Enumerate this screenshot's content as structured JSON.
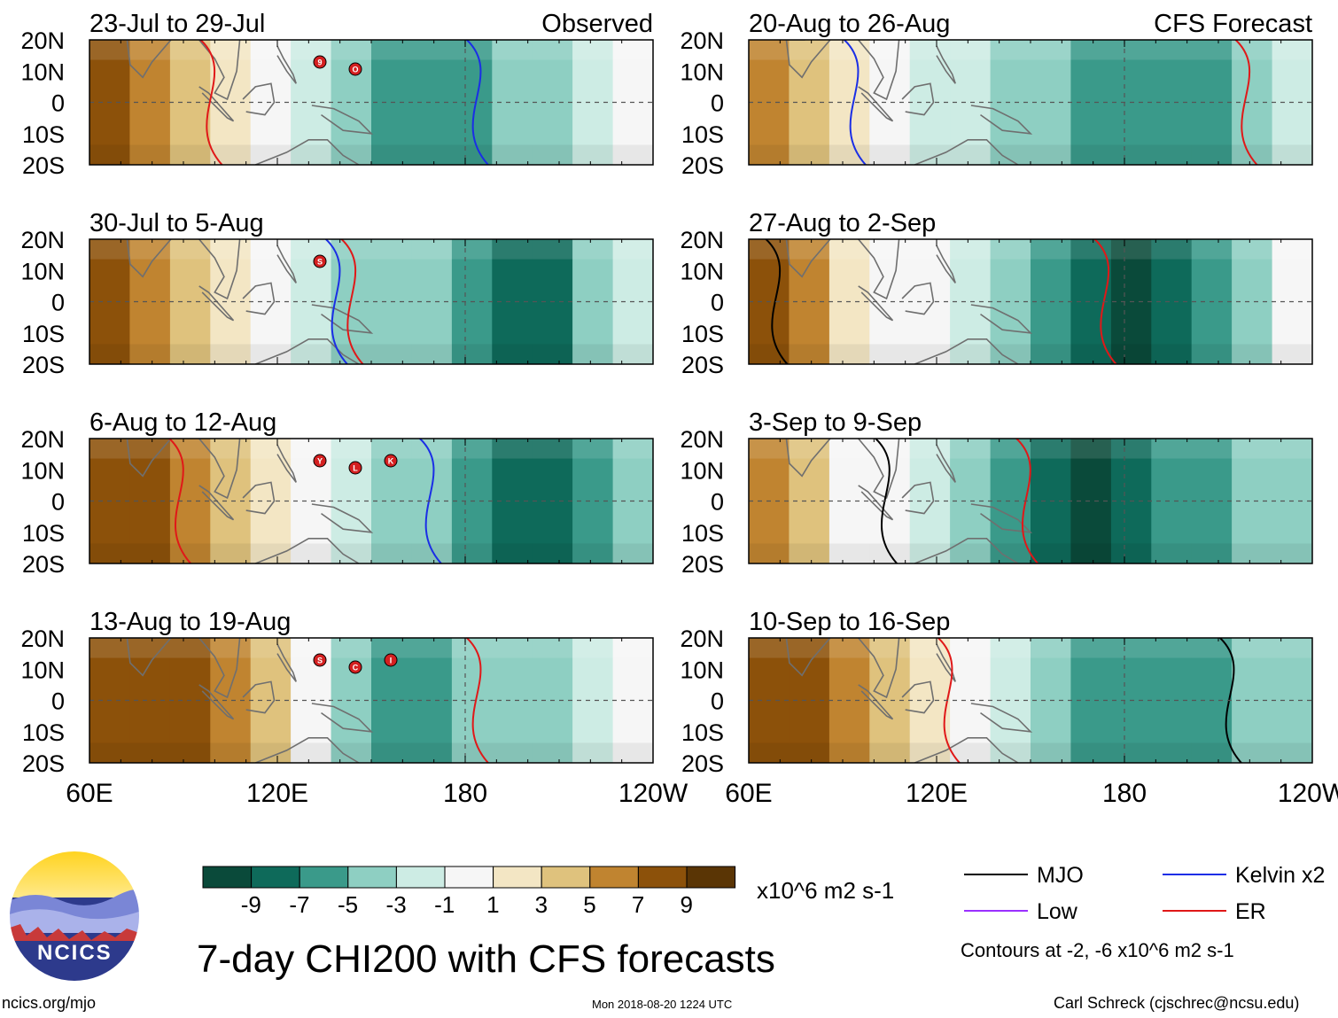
{
  "chart_data": {
    "type": "heatmap",
    "variable": "CHI200",
    "title": "7-day CHI200 with CFS forecasts",
    "lat_labels": [
      "20N",
      "10N",
      "0",
      "10S",
      "20S"
    ],
    "lon_labels": [
      "60E",
      "120E",
      "180",
      "120W"
    ],
    "lon_range_deg_east": [
      60,
      240
    ],
    "lat_range_deg": [
      -20,
      20
    ],
    "column_labels": {
      "observed": "Observed",
      "forecast": "CFS Forecast"
    },
    "panels": [
      {
        "column": "observed",
        "label": "23-Jul to 29-Jul",
        "anomaly_bands": [
          8,
          6,
          4,
          2,
          0,
          -2,
          -4,
          -6,
          -6,
          -6,
          -4,
          -3,
          -1,
          0
        ],
        "contours": [
          {
            "type": "Kelvin",
            "lon": 185
          },
          {
            "type": "ER",
            "lon": 100
          }
        ],
        "storm_markers": [
          "9",
          "O"
        ]
      },
      {
        "column": "observed",
        "label": "30-Jul to 5-Aug",
        "anomaly_bands": [
          9,
          7,
          4,
          2,
          0,
          -2,
          -3,
          -4,
          -4,
          -6,
          -7,
          -7,
          -3,
          -1
        ],
        "contours": [
          {
            "type": "Kelvin",
            "lon": 140
          },
          {
            "type": "ER",
            "lon": 145
          }
        ],
        "storm_markers": [
          "S"
        ]
      },
      {
        "column": "observed",
        "label": "6-Aug to 12-Aug",
        "anomaly_bands": [
          9,
          8,
          6,
          4,
          2,
          0,
          -2,
          -3,
          -4,
          -5,
          -7,
          -8,
          -6,
          -3
        ],
        "contours": [
          {
            "type": "ER",
            "lon": 90
          },
          {
            "type": "Kelvin",
            "lon": 170
          }
        ],
        "storm_markers": [
          "Y",
          "L",
          "K"
        ]
      },
      {
        "column": "observed",
        "label": "13-Aug to 19-Aug",
        "anomaly_bands": [
          9,
          9,
          8,
          6,
          4,
          1,
          -3,
          -6,
          -5,
          -4,
          -4,
          -3,
          -2,
          1
        ],
        "contours": [
          {
            "type": "ER",
            "lon": 185
          }
        ],
        "storm_markers": [
          "S",
          "C",
          "I"
        ]
      },
      {
        "column": "forecast",
        "label": "20-Aug to 26-Aug",
        "anomaly_bands": [
          6,
          4,
          2,
          0,
          -1,
          -2,
          -3,
          -4,
          -5,
          -6,
          -6,
          -5,
          -4,
          -2
        ],
        "contours": [
          {
            "type": "Kelvin",
            "lon": 95
          },
          {
            "type": "ER",
            "lon": 220
          }
        ],
        "storm_markers": []
      },
      {
        "column": "forecast",
        "label": "27-Aug to 2-Sep",
        "anomaly_bands": [
          8,
          6,
          3,
          1,
          0,
          -1,
          -3,
          -5,
          -8,
          -9,
          -8,
          -6,
          -3,
          1
        ],
        "contours": [
          {
            "type": "MJO",
            "lon": 70
          },
          {
            "type": "ER",
            "lon": 175
          }
        ],
        "storm_markers": []
      },
      {
        "column": "forecast",
        "label": "3-Sep to 9-Sep",
        "anomaly_bands": [
          6,
          4,
          1,
          0,
          -1,
          -3,
          -6,
          -8,
          -9,
          -8,
          -6,
          -5,
          -4,
          -3
        ],
        "contours": [
          {
            "type": "MJO",
            "lon": 105
          },
          {
            "type": "ER",
            "lon": 150
          }
        ],
        "storm_markers": []
      },
      {
        "column": "forecast",
        "label": "10-Sep to 16-Sep",
        "anomaly_bands": [
          9,
          8,
          6,
          4,
          2,
          0,
          -2,
          -4,
          -5,
          -6,
          -6,
          -5,
          -4,
          -3
        ],
        "contours": [
          {
            "type": "ER",
            "lon": 125
          },
          {
            "type": "MJO",
            "lon": 215
          }
        ],
        "storm_markers": []
      }
    ],
    "colorbar": {
      "bins": [
        {
          "label": "-9",
          "color": "#0a4a3a"
        },
        {
          "label": "-7",
          "color": "#0e6a5a"
        },
        {
          "label": "-5",
          "color": "#3a9a8a"
        },
        {
          "label": "-3",
          "color": "#8ecfc2"
        },
        {
          "label": "-1",
          "color": "#cdece4"
        },
        {
          "label": "1",
          "color": "#f6f6f6"
        },
        {
          "label": "3",
          "color": "#f3e6c4"
        },
        {
          "label": "5",
          "color": "#dfc27d"
        },
        {
          "label": "7",
          "color": "#c08430"
        },
        {
          "label": "9",
          "color": "#8c510a"
        },
        {
          "label": "",
          "color": "#5a3505"
        }
      ],
      "units": "x10^6 m2 s-1"
    },
    "legend": [
      {
        "label": "MJO",
        "color": "#000000"
      },
      {
        "label": "Kelvin x2",
        "color": "#1a2ee6"
      },
      {
        "label": "Low",
        "color": "#9b30ff"
      },
      {
        "label": "ER",
        "color": "#e01818"
      }
    ],
    "contour_note": "Contours at -2, -6 x10^6 m2 s-1"
  },
  "footer": {
    "url": "ncics.org/mjo",
    "timestamp": "Mon 2018-08-20 1224 UTC",
    "credit": "Carl Schreck (cjschrec@ncsu.edu)",
    "logo_text": "NCICS"
  },
  "colors": {
    "storm_marker": "#d42020",
    "gridline": "#555555"
  }
}
